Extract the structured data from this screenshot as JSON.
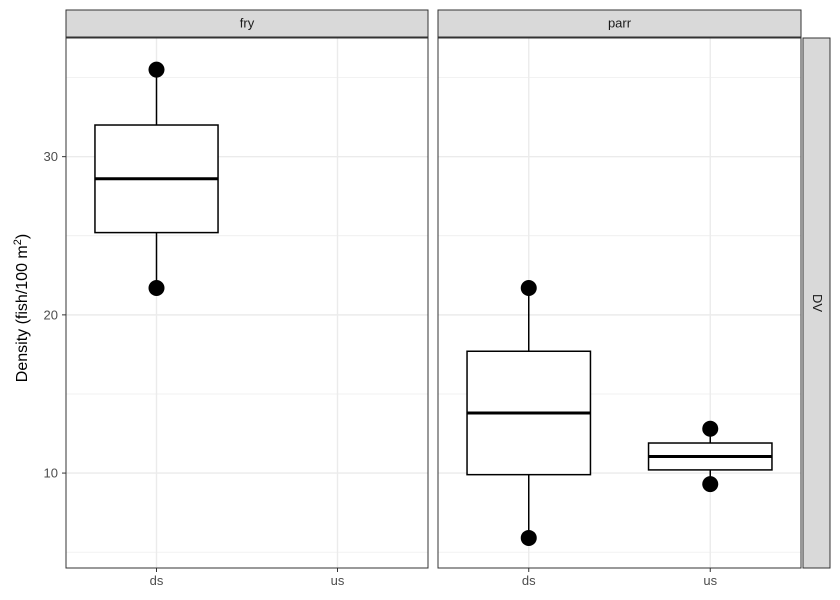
{
  "chart_data": {
    "type": "boxplot",
    "ylabel_text": "Density (fish/100 m",
    "ylabel_superscript": "2",
    "ylabel_close": ")",
    "ylim": [
      4,
      37.5
    ],
    "yticks": [
      10,
      20,
      30
    ],
    "ytick_labels": [
      "10",
      "20",
      "30"
    ],
    "categories": [
      "ds",
      "us"
    ],
    "row_strip": "DV",
    "grid": true,
    "panels": [
      {
        "strip": "fry",
        "boxes": [
          {
            "category": "ds",
            "whisker_low": 21.7,
            "q1": 25.2,
            "median": 28.6,
            "q3": 32.0,
            "whisker_high": 35.5,
            "outliers": [
              21.7,
              35.5
            ]
          }
        ]
      },
      {
        "strip": "parr",
        "boxes": [
          {
            "category": "ds",
            "whisker_low": 5.9,
            "q1": 9.9,
            "median": 13.8,
            "q3": 17.7,
            "whisker_high": 21.7,
            "outliers": [
              5.9,
              21.7
            ]
          },
          {
            "category": "us",
            "whisker_low": 9.3,
            "q1": 10.2,
            "median": 11.05,
            "q3": 11.9,
            "whisker_high": 12.8,
            "outliers": [
              9.3,
              12.8
            ]
          }
        ]
      }
    ]
  }
}
